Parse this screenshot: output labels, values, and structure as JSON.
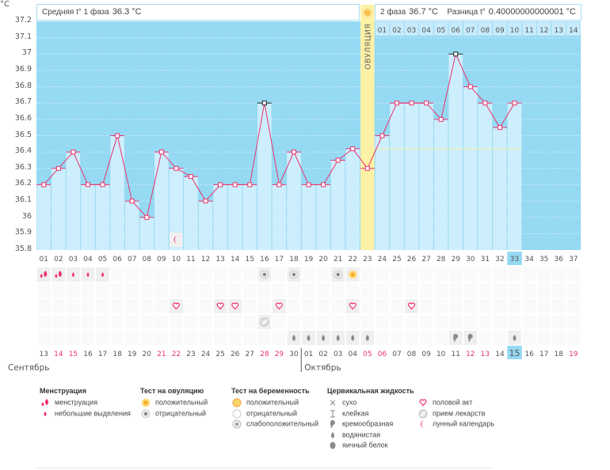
{
  "header": {
    "unit": "°C",
    "phase1": "Средняя t° 1 фаза",
    "phase1_value": "36.3 °C",
    "phase2": "2 фаза",
    "phase2_value": "36.7 °C",
    "diff": "Разница t°",
    "diff_value": "0.40000000000001 °C",
    "ovulation": "ОВУЛЯЦИЯ"
  },
  "colors": {
    "plot_bg": "#95d9f3",
    "bar": "#cdeefc",
    "ovulation": "#fdf1a6",
    "line": "#e8336d",
    "highlight": "#95d9f3",
    "weekend": "#e8336d"
  },
  "chart_data": {
    "type": "line",
    "ylim": [
      35.8,
      37.2
    ],
    "yticks": [
      "37.2",
      "37.1",
      "37",
      "36.9",
      "36.8",
      "36.7",
      "36.6",
      "36.5",
      "36.4",
      "36.3",
      "36.2",
      "36.1",
      "36",
      "35.9",
      "35.8"
    ],
    "cycle_days": [
      "01",
      "02",
      "03",
      "04",
      "05",
      "06",
      "07",
      "08",
      "09",
      "10",
      "11",
      "12",
      "13",
      "14",
      "15",
      "16",
      "17",
      "18",
      "19",
      "20",
      "21",
      "22",
      "23",
      "24",
      "25",
      "26",
      "27",
      "28",
      "29",
      "30",
      "31",
      "32",
      "33",
      "34",
      "35",
      "36",
      "37"
    ],
    "temperatures": [
      36.2,
      36.3,
      36.4,
      36.2,
      36.2,
      36.5,
      36.1,
      36.0,
      36.4,
      36.3,
      36.25,
      36.1,
      36.2,
      36.2,
      36.2,
      36.7,
      36.2,
      36.4,
      36.2,
      36.2,
      36.35,
      36.42,
      36.3,
      36.5,
      36.7,
      36.7,
      36.7,
      36.6,
      37.0,
      36.8,
      36.7,
      36.55,
      36.7
    ],
    "special_markers_days": [
      16,
      29
    ],
    "ovulation_day": 23,
    "phase2_days": [
      "01",
      "02",
      "03",
      "04",
      "05",
      "06",
      "07",
      "08",
      "09",
      "10",
      "11",
      "12",
      "13",
      "14"
    ],
    "current_day": 33,
    "moon_day": 10
  },
  "dates": [
    "13",
    "14",
    "15",
    "16",
    "17",
    "18",
    "19",
    "20",
    "21",
    "22",
    "23",
    "24",
    "25",
    "26",
    "27",
    "28",
    "29",
    "30",
    "01",
    "02",
    "03",
    "04",
    "05",
    "06",
    "07",
    "08",
    "09",
    "10",
    "11",
    "12",
    "13",
    "14",
    "15",
    "16",
    "17",
    "18",
    "19"
  ],
  "weekend_dates_idx": [
    1,
    2,
    8,
    9,
    15,
    16,
    22,
    23,
    29,
    30,
    36
  ],
  "months": [
    "Сентябрь",
    "Октябрь"
  ],
  "icon_rows": [
    {
      "1": "menstruation",
      "2": "menstruation",
      "3": "spotting",
      "4": "spotting",
      "5": "spotting",
      "16": "ovtest-negative",
      "18": "ovtest-negative",
      "21": "ovtest-negative",
      "22": "ovtest-positive"
    },
    {},
    {
      "10": "sex",
      "13": "sex",
      "14": "sex",
      "17": "sex",
      "22": "sex",
      "26": "sex"
    },
    {
      "16": "pill"
    },
    {
      "18": "watery",
      "19": "watery",
      "20": "watery",
      "21": "watery",
      "22": "watery",
      "23": "watery",
      "29": "creamy",
      "30": "creamy",
      "33": "watery"
    }
  ],
  "legend": [
    {
      "title": "Менструация",
      "items": [
        {
          "icon": "menstruation",
          "label": "менструация"
        },
        {
          "icon": "spotting",
          "label": "небольшие выделения"
        }
      ]
    },
    {
      "title": "Тест на овуляцию",
      "items": [
        {
          "icon": "ovtest-positive",
          "label": "положительный"
        },
        {
          "icon": "ovtest-negative",
          "label": "отрицательный"
        }
      ]
    },
    {
      "title": "Тест на беременность",
      "items": [
        {
          "icon": "preg-positive",
          "label": "положительный"
        },
        {
          "icon": "preg-negative",
          "label": "отрицательный"
        },
        {
          "icon": "preg-weak",
          "label": "слабоположительный"
        }
      ]
    },
    {
      "title": "Цервикальная жидкость",
      "items": [
        {
          "icon": "dry",
          "label": "сухо"
        },
        {
          "icon": "sticky",
          "label": "клейкая"
        },
        {
          "icon": "creamy",
          "label": "кремообразная"
        },
        {
          "icon": "watery",
          "label": "водянистая"
        },
        {
          "icon": "eggwhite",
          "label": "яичный белок"
        }
      ]
    },
    {
      "title": "",
      "items": [
        {
          "icon": "sex",
          "label": "половой акт"
        },
        {
          "icon": "pill",
          "label": "прием лекарств"
        },
        {
          "icon": "moon",
          "label": "лунный календарь"
        }
      ]
    }
  ]
}
